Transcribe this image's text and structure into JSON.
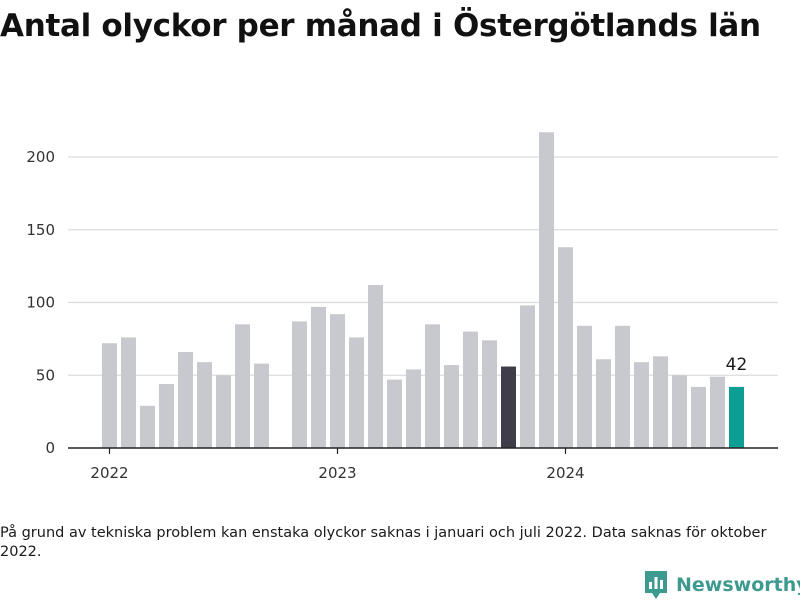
{
  "title": "Antal olyckor per månad i Östergötlands län",
  "footnote": "På grund av tekniska problem kan enstaka olyckor saknas i januari och juli 2022. Data saknas för oktober 2022.",
  "brand": {
    "name": "Newsworthy",
    "icon": "newsworthy-logo-icon",
    "color": "#3d9a8e"
  },
  "chart_data": {
    "type": "bar",
    "title": "Antal olyckor per månad i Östergötlands län",
    "xlabel": "",
    "ylabel": "",
    "ylim": [
      0,
      220
    ],
    "yticks": [
      0,
      50,
      100,
      150,
      200
    ],
    "xticks": [
      "2022",
      "2023",
      "2024"
    ],
    "grid": true,
    "legend": "none",
    "colors": {
      "default": "#c8c8cf",
      "highlight_dark": "#3f3d4a",
      "highlight_latest": "#0d9e93"
    },
    "categories": [
      "2022-01",
      "2022-02",
      "2022-03",
      "2022-04",
      "2022-05",
      "2022-06",
      "2022-07",
      "2022-08",
      "2022-09",
      "2022-10",
      "2022-11",
      "2022-12",
      "2023-01",
      "2023-02",
      "2023-03",
      "2023-04",
      "2023-05",
      "2023-06",
      "2023-07",
      "2023-08",
      "2023-09",
      "2023-10",
      "2023-11",
      "2023-12",
      "2024-01",
      "2024-02",
      "2024-03",
      "2024-04",
      "2024-05",
      "2024-06",
      "2024-07",
      "2024-08",
      "2024-09",
      "2024-10"
    ],
    "values": [
      72,
      76,
      29,
      44,
      66,
      59,
      50,
      85,
      58,
      null,
      87,
      97,
      92,
      76,
      112,
      47,
      54,
      85,
      57,
      80,
      74,
      56,
      98,
      217,
      138,
      84,
      61,
      84,
      59,
      63,
      50,
      42,
      49,
      42
    ],
    "highlights": {
      "2023-10": "highlight_dark",
      "2024-10": "highlight_latest"
    },
    "data_labels": [
      {
        "category": "2024-10",
        "text": "42"
      }
    ]
  }
}
